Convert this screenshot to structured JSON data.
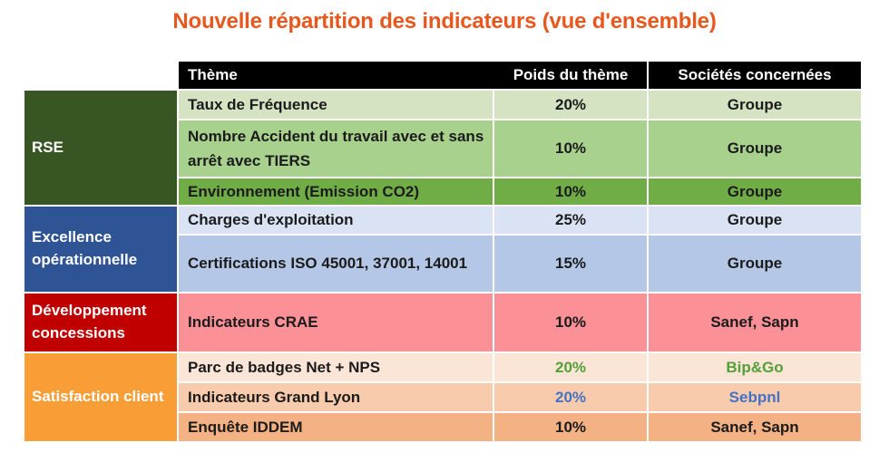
{
  "title": {
    "text": "Nouvelle répartition des indicateurs (vue d'ensemble)",
    "color": "#E7571E"
  },
  "table": {
    "header": {
      "theme": "Thème",
      "poids": "Poids du thème",
      "societes": "Sociétés concernées",
      "bg": "#000000",
      "text_color": "#FFFFFF"
    },
    "default_text_color": "#1B1B1B",
    "groups": [
      {
        "name": "RSE",
        "label_bg": "#375623",
        "rows": [
          {
            "theme": "Taux de Fréquence",
            "poids": "20%",
            "societes": "Groupe",
            "bg": "#D5E3C3"
          },
          {
            "theme": "Nombre Accident du travail avec et sans arrêt avec TIERS",
            "poids": "10%",
            "societes": "Groupe",
            "bg": "#A9D18E"
          },
          {
            "theme": "Environnement (Emission CO2)",
            "poids": "10%",
            "societes": "Groupe",
            "bg": "#70AD47"
          }
        ]
      },
      {
        "name": "Excellence opérationnelle",
        "label_bg": "#2F5496",
        "rows": [
          {
            "theme": "Charges d'exploitation",
            "poids": "25%",
            "societes": "Groupe",
            "bg": "#DAE3F3"
          },
          {
            "theme": "Certifications ISO 45001, 37001, 14001",
            "poids": "15%",
            "societes": "Groupe",
            "bg": "#B4C7E7"
          }
        ]
      },
      {
        "name": "Développement concessions",
        "label_bg": "#C00000",
        "rows": [
          {
            "theme": "Indicateurs CRAE",
            "poids": "10%",
            "societes": "Sanef, Sapn",
            "bg": "#FB9196"
          }
        ]
      },
      {
        "name": "Satisfaction client",
        "label_bg": "#F99D36",
        "rows": [
          {
            "theme": "Parc de badges Net + NPS",
            "poids": "20%",
            "societes": "Bip&Go",
            "bg": "#FBE5D6",
            "value_color": "#54A038"
          },
          {
            "theme": "Indicateurs Grand Lyon",
            "poids": "20%",
            "societes": "Sebpnl",
            "bg": "#F8CBAD",
            "value_color": "#4472C4"
          },
          {
            "theme": "Enquête IDDEM",
            "poids": "10%",
            "societes": "Sanef, Sapn",
            "bg": "#F4B183"
          }
        ]
      }
    ]
  }
}
